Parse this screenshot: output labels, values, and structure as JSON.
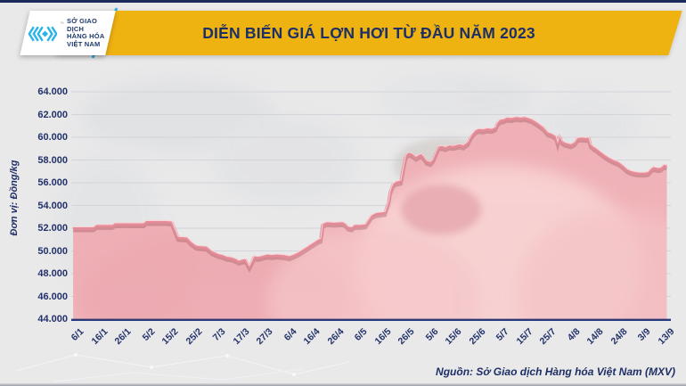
{
  "header": {
    "title": "DIỄN BIẾN GIÁ LỢN HƠI TỪ ĐẦU NĂM 2023",
    "banner_color": "#eeb211",
    "title_color": "#1c2f66",
    "logo": {
      "line1": "SỞ GIAO DỊCH",
      "line2": "HÀNG HÓA",
      "line3": "VIỆT NAM",
      "trademark": "™",
      "mark_color": "#2ab4e8"
    }
  },
  "chart_data": {
    "type": "area",
    "title": "DIỄN BIẾN GIÁ LỢN HƠI TỪ ĐẦU NĂM 2023",
    "ylabel": "Đơn vị: Đồng/kg",
    "unit": "Đồng/kg",
    "ylim": [
      44000,
      64000
    ],
    "ytick_step": 2000,
    "grid": true,
    "legend": false,
    "line_color": "#e58b97",
    "fill_color": "#f0b2b7",
    "categories": [
      "6/1",
      "16/1",
      "26/1",
      "5/2",
      "15/2",
      "25/2",
      "7/3",
      "17/3",
      "27/3",
      "6/4",
      "16/4",
      "26/4",
      "6/5",
      "16/5",
      "26/5",
      "5/6",
      "15/6",
      "25/6",
      "5/7",
      "15/7",
      "25/7",
      "4/8",
      "14/8",
      "24/8",
      "3/9",
      "13/9"
    ],
    "values": [
      52000,
      52200,
      52300,
      52500,
      52500,
      50400,
      49600,
      49000,
      49500,
      49500,
      50600,
      52400,
      52200,
      53100,
      58300,
      57900,
      59200,
      60500,
      61500,
      61700,
      60300,
      59300,
      59000,
      57800,
      56800,
      57450
    ],
    "detail_points": [
      [
        -0.11,
        52.0
      ],
      [
        0.75,
        52.0
      ],
      [
        0.87,
        52.2
      ],
      [
        1.55,
        52.2
      ],
      [
        1.66,
        52.35
      ],
      [
        2.87,
        52.35
      ],
      [
        2.98,
        52.55
      ],
      [
        3.81,
        52.55
      ],
      [
        4.07,
        52.5
      ],
      [
        4.19,
        51.9
      ],
      [
        4.34,
        51.15
      ],
      [
        4.71,
        51.1
      ],
      [
        4.9,
        50.7
      ],
      [
        5.09,
        50.4
      ],
      [
        5.17,
        50.35
      ],
      [
        5.54,
        50.3
      ],
      [
        5.77,
        49.9
      ],
      [
        6.03,
        49.65
      ],
      [
        6.22,
        49.55
      ],
      [
        6.41,
        49.4
      ],
      [
        6.6,
        49.35
      ],
      [
        6.79,
        49.2
      ],
      [
        6.9,
        49.05
      ],
      [
        7.05,
        49.15
      ],
      [
        7.2,
        49.2
      ],
      [
        7.28,
        48.85
      ],
      [
        7.35,
        48.6
      ],
      [
        7.47,
        49.1
      ],
      [
        7.54,
        49.45
      ],
      [
        7.73,
        49.4
      ],
      [
        7.92,
        49.5
      ],
      [
        8.11,
        49.6
      ],
      [
        8.3,
        49.55
      ],
      [
        8.48,
        49.6
      ],
      [
        8.79,
        49.55
      ],
      [
        9.05,
        49.45
      ],
      [
        9.24,
        49.6
      ],
      [
        9.43,
        49.8
      ],
      [
        9.62,
        50.05
      ],
      [
        9.81,
        50.3
      ],
      [
        9.99,
        50.55
      ],
      [
        10.26,
        50.9
      ],
      [
        10.37,
        51.0
      ],
      [
        10.45,
        52.3
      ],
      [
        10.63,
        52.45
      ],
      [
        10.94,
        52.4
      ],
      [
        11.31,
        52.45
      ],
      [
        11.43,
        52.3
      ],
      [
        11.54,
        52.05
      ],
      [
        11.69,
        52.0
      ],
      [
        11.8,
        52.2
      ],
      [
        12.07,
        52.2
      ],
      [
        12.26,
        52.25
      ],
      [
        12.37,
        52.6
      ],
      [
        12.52,
        53.05
      ],
      [
        12.71,
        53.25
      ],
      [
        12.94,
        53.3
      ],
      [
        13.09,
        53.35
      ],
      [
        13.24,
        54.3
      ],
      [
        13.31,
        55.2
      ],
      [
        13.42,
        55.8
      ],
      [
        13.54,
        56.0
      ],
      [
        13.76,
        56.1
      ],
      [
        13.84,
        57.0
      ],
      [
        13.95,
        58.2
      ],
      [
        14.03,
        58.5
      ],
      [
        14.14,
        58.55
      ],
      [
        14.29,
        58.4
      ],
      [
        14.4,
        58.2
      ],
      [
        14.52,
        58.35
      ],
      [
        14.63,
        58.45
      ],
      [
        14.74,
        58.2
      ],
      [
        14.86,
        57.85
      ],
      [
        15.01,
        57.75
      ],
      [
        15.12,
        58.0
      ],
      [
        15.24,
        58.6
      ],
      [
        15.35,
        59.1
      ],
      [
        15.5,
        59.15
      ],
      [
        15.65,
        59.05
      ],
      [
        15.8,
        59.2
      ],
      [
        15.99,
        59.15
      ],
      [
        16.14,
        59.25
      ],
      [
        16.29,
        59.3
      ],
      [
        16.4,
        59.2
      ],
      [
        16.59,
        59.5
      ],
      [
        16.74,
        60.1
      ],
      [
        16.9,
        60.5
      ],
      [
        17.05,
        60.65
      ],
      [
        17.24,
        60.6
      ],
      [
        17.42,
        60.7
      ],
      [
        17.61,
        60.65
      ],
      [
        17.76,
        60.8
      ],
      [
        17.84,
        61.2
      ],
      [
        17.95,
        61.45
      ],
      [
        18.1,
        61.5
      ],
      [
        18.25,
        61.65
      ],
      [
        18.44,
        61.6
      ],
      [
        18.63,
        61.7
      ],
      [
        18.82,
        61.65
      ],
      [
        19.01,
        61.7
      ],
      [
        19.16,
        61.6
      ],
      [
        19.31,
        61.5
      ],
      [
        19.46,
        61.3
      ],
      [
        19.61,
        61.1
      ],
      [
        19.8,
        60.8
      ],
      [
        19.99,
        60.35
      ],
      [
        20.18,
        60.2
      ],
      [
        20.33,
        60.0
      ],
      [
        20.4,
        59.5
      ],
      [
        20.48,
        60.1
      ],
      [
        20.59,
        59.6
      ],
      [
        20.7,
        59.45
      ],
      [
        20.86,
        59.35
      ],
      [
        20.97,
        59.3
      ],
      [
        21.12,
        59.5
      ],
      [
        21.23,
        59.85
      ],
      [
        21.42,
        59.9
      ],
      [
        21.61,
        59.85
      ],
      [
        21.72,
        59.9
      ],
      [
        21.8,
        59.3
      ],
      [
        21.91,
        59.1
      ],
      [
        22.06,
        58.9
      ],
      [
        22.21,
        58.65
      ],
      [
        22.4,
        58.35
      ],
      [
        22.59,
        58.1
      ],
      [
        22.78,
        57.9
      ],
      [
        22.97,
        57.75
      ],
      [
        23.16,
        57.45
      ],
      [
        23.35,
        57.1
      ],
      [
        23.5,
        56.95
      ],
      [
        23.69,
        56.85
      ],
      [
        23.87,
        56.8
      ],
      [
        24.06,
        56.8
      ],
      [
        24.21,
        56.85
      ],
      [
        24.33,
        57.1
      ],
      [
        24.44,
        57.3
      ],
      [
        24.55,
        57.25
      ],
      [
        24.66,
        57.2
      ],
      [
        24.77,
        57.25
      ],
      [
        24.89,
        57.5
      ],
      [
        25.02,
        57.45
      ]
    ]
  },
  "footer": {
    "source": "Nguồn: Sở Giao dịch Hàng hóa Việt Nam (MXV)"
  }
}
